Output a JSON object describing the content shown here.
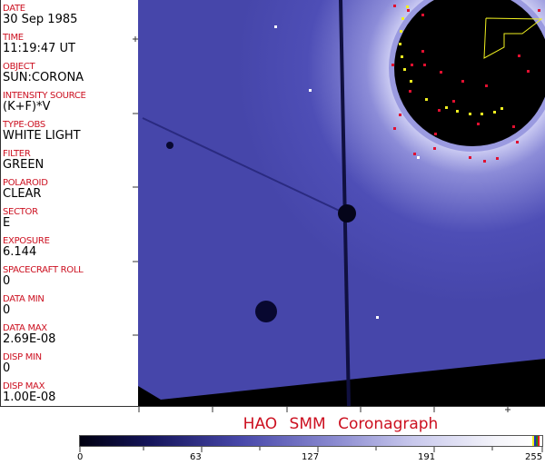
{
  "header_fields": [
    {
      "label": "DATE",
      "value": "30 Sep 1985"
    },
    {
      "label": "TIME",
      "value": "11:19:47 UT"
    },
    {
      "label": "OBJECT",
      "value": "SUN:CORONA"
    },
    {
      "label": "INTENSITY SOURCE",
      "value": "(K+F)*V"
    },
    {
      "label": "TYPE-OBS",
      "value": "WHITE LIGHT"
    },
    {
      "label": "FILTER",
      "value": "GREEN"
    },
    {
      "label": "POLAROID",
      "value": "CLEAR"
    },
    {
      "label": "SECTOR",
      "value": "E"
    },
    {
      "label": "EXPOSURE",
      "value": "6.144"
    },
    {
      "label": "SPACECRAFT ROLL",
      "value": "0"
    },
    {
      "label": "DATA MIN",
      "value": "0"
    },
    {
      "label": "DATA MAX",
      "value": "2.69E-08"
    },
    {
      "label": "DISP MIN",
      "value": "0"
    },
    {
      "label": "DISP MAX",
      "value": "1.00E-08"
    }
  ],
  "title": "HAO SMM Coronagraph",
  "colorbar": {
    "ticks": [
      "0",
      "63",
      "127",
      "191",
      "255"
    ],
    "min": 0,
    "max": 255
  },
  "colors": {
    "label": "#cc1020",
    "image_blue": "#4a4ab4",
    "marker_red": "#e01030",
    "marker_yellow": "#f0f020"
  }
}
